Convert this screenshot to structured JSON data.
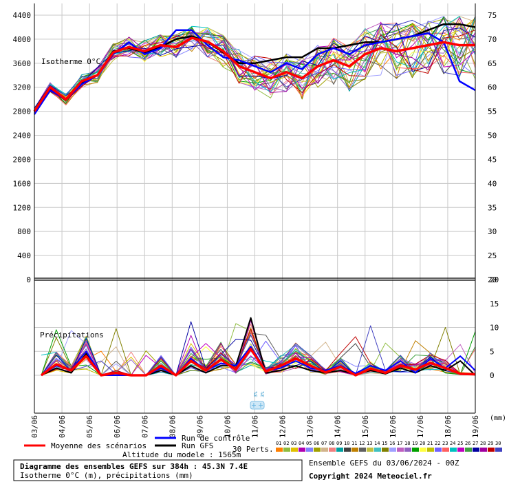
{
  "chart_data": {
    "type": "line",
    "title": "Diagramme des ensembles GEFS sur 384h : 45.3N 7.4E",
    "subtitle": "Isotherme 0°C (m), précipitations (mm)",
    "run_label": "Ensemble GEFS du 03/06/2024 - 00Z",
    "copyright": "Copyright 2024 Meteociel.fr",
    "model_altitude": "Altitude du modele : 1565m",
    "perts_label": "30 Perts.",
    "upper_panel": {
      "label": "Isotherme 0°C",
      "ylim": [
        0,
        4400
      ],
      "yticks": [
        "0",
        "400",
        "800",
        "1200",
        "1600",
        "2000",
        "2400",
        "2800",
        "3200",
        "3600",
        "4000",
        "4400"
      ],
      "right_ticks": [
        "20",
        "25",
        "30",
        "35",
        "40",
        "45",
        "50",
        "55",
        "60",
        "65",
        "70",
        "75"
      ]
    },
    "lower_panel": {
      "label": "Précipitations",
      "ylim": [
        0,
        20
      ],
      "right_ticks": [
        "0",
        "5",
        "10",
        "15",
        "20"
      ]
    },
    "x_unit": "(mm)",
    "xticks": [
      "03/06",
      "04/06",
      "05/06",
      "06/06",
      "07/06",
      "08/06",
      "09/06",
      "10/06",
      "11/06",
      "12/06",
      "13/06",
      "14/06",
      "15/06",
      "16/06",
      "17/06",
      "18/06",
      "19/06"
    ],
    "snow_labels": [
      "3%",
      "3%"
    ],
    "legend": {
      "mean": "Moyenne des scénarios",
      "control": "Run de contrôle",
      "gfs": "Run GFS"
    },
    "pert_numbers": [
      "01",
      "02",
      "03",
      "04",
      "05",
      "06",
      "07",
      "08",
      "09",
      "10",
      "11",
      "12",
      "13",
      "14",
      "15",
      "16",
      "17",
      "18",
      "19",
      "20",
      "21",
      "22",
      "23",
      "24",
      "25",
      "26",
      "27",
      "28",
      "29",
      "30"
    ],
    "pert_colors": [
      "#ff7f00",
      "#8fbc3f",
      "#e0c000",
      "#b000b0",
      "#8080ff",
      "#a0a000",
      "#d2b48c",
      "#f08080",
      "#00a0a0",
      "#404040",
      "#c08000",
      "#606060",
      "#c0c040",
      "#40c0c0",
      "#808000",
      "#a0a0ff",
      "#c060c0",
      "#9060c0",
      "#00a000",
      "#ffff40",
      "#c0c000",
      "#7060ff",
      "#ff6060",
      "#00c0c0",
      "#c000c0",
      "#40a040",
      "#0000a0",
      "#a000a0",
      "#c00000",
      "#4040c0"
    ],
    "series_colors": {
      "mean": "#ff0000",
      "control": "#0000ff",
      "gfs": "#000000"
    },
    "mean_iso": [
      2800,
      3200,
      3000,
      3300,
      3400,
      3780,
      3870,
      3800,
      3900,
      3870,
      4020,
      3960,
      3800,
      3550,
      3450,
      3350,
      3450,
      3350,
      3550,
      3650,
      3550,
      3750,
      3850,
      3800,
      3850,
      3900,
      3950,
      3900,
      3900
    ],
    "control_iso": [
      2750,
      3150,
      3000,
      3250,
      3400,
      3750,
      3950,
      3750,
      3850,
      4150,
      4150,
      3900,
      3700,
      3650,
      3550,
      3450,
      3600,
      3500,
      3750,
      3850,
      3750,
      3900,
      3950,
      4000,
      4050,
      4100,
      3950,
      3300,
      3150
    ],
    "gfs_iso": [
      2780,
      3180,
      3000,
      3280,
      3400,
      3800,
      3850,
      3780,
      3870,
      4000,
      4050,
      3950,
      3780,
      3600,
      3600,
      3650,
      3700,
      3700,
      3850,
      3850,
      3900,
      3950,
      3950,
      4000,
      4050,
      4150,
      4250,
      4250,
      4200
    ],
    "mean_prec": [
      0,
      2.3,
      1,
      4,
      0,
      0.5,
      0,
      0,
      2,
      0,
      3,
      1,
      3.3,
      1.2,
      5.5,
      0.8,
      2,
      3.5,
      2,
      0.6,
      1.8,
      0,
      1.4,
      0.5,
      2,
      1.2,
      2.6,
      1.5,
      0.3,
      0.2
    ],
    "control_prec": [
      0,
      2,
      1.2,
      5,
      0,
      0,
      0,
      0,
      1.5,
      0,
      3.5,
      1,
      2.5,
      2,
      6,
      1,
      1.5,
      3,
      1.5,
      1,
      2,
      0.4,
      2,
      1,
      3,
      0.5,
      3.5,
      1.5,
      4,
      1
    ],
    "gfs_prec": [
      0,
      1.5,
      0.5,
      4.5,
      0,
      0,
      0,
      0,
      1,
      0,
      2,
      0.5,
      2,
      2,
      12,
      0.5,
      1,
      2,
      1,
      0.5,
      1,
      0.2,
      1,
      0.3,
      1.5,
      0.5,
      2,
      1,
      3,
      0
    ]
  }
}
